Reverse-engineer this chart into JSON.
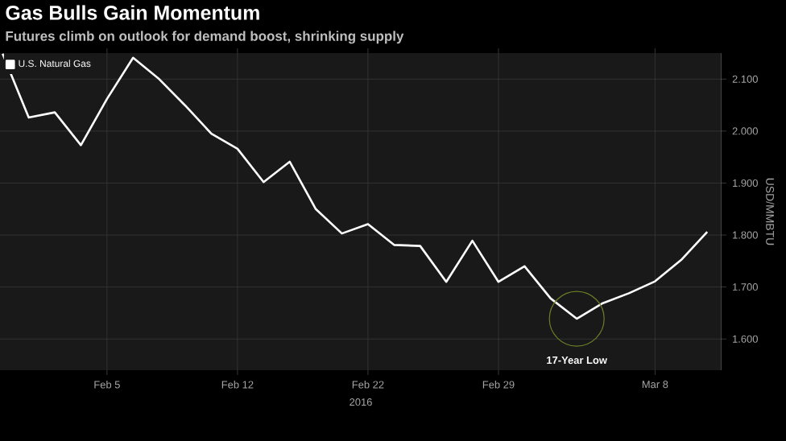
{
  "chart_data": {
    "type": "line",
    "title": "Gas Bulls Gain Momentum",
    "subtitle": "Futures climb on outlook for demand boost, shrinking supply",
    "xlabel": "2016",
    "ylabel": "USD/MMBTU",
    "categories": [
      null,
      null,
      null,
      null,
      "Feb 5",
      null,
      null,
      null,
      null,
      "Feb 12",
      null,
      null,
      null,
      null,
      "Feb 22",
      null,
      null,
      null,
      null,
      "Feb 29",
      null,
      null,
      null,
      null,
      null,
      "Mar 8",
      null,
      null
    ],
    "series": [
      {
        "name": "U.S. Natural Gas",
        "color": "#ffffff",
        "values": [
          2.149,
          2.026,
          2.036,
          1.973,
          2.062,
          2.141,
          2.1,
          2.049,
          1.995,
          1.966,
          1.902,
          1.941,
          1.85,
          1.803,
          1.821,
          1.781,
          1.779,
          1.71,
          1.789,
          1.71,
          1.74,
          1.678,
          1.639,
          1.669,
          1.688,
          1.711,
          1.752,
          1.806
        ]
      }
    ],
    "ylim": [
      1.54,
      2.15
    ],
    "yticks": [
      {
        "value": 1.6,
        "label": "1.600"
      },
      {
        "value": 1.7,
        "label": "1.700"
      },
      {
        "value": 1.8,
        "label": "1.800"
      },
      {
        "value": 1.9,
        "label": "1.900"
      },
      {
        "value": 2.0,
        "label": "2.000"
      },
      {
        "value": 2.1,
        "label": "2.100"
      }
    ],
    "annotations": [
      "17-Year Low"
    ],
    "grid": true,
    "legend": "top left"
  }
}
